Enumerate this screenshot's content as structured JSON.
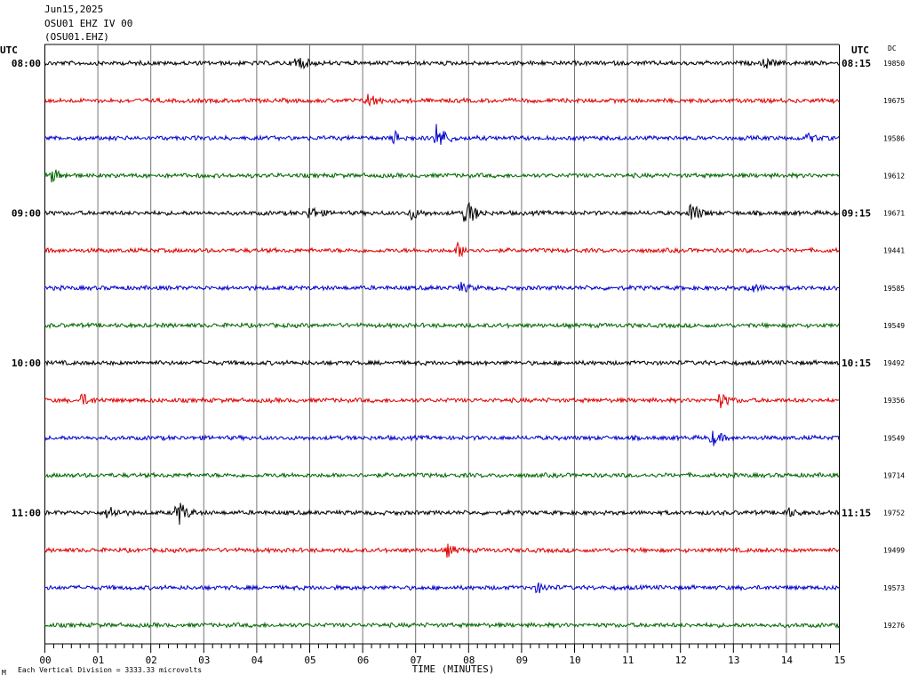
{
  "header": {
    "date": "Jun15,2025",
    "station": "OSU01 EHZ IV 00",
    "channel": "(OSU01.EHZ)"
  },
  "left_axis_label": "UTC",
  "right_axis_label": "UTC",
  "dc_label": "DC",
  "footer": {
    "scale_note": "Each Vertical Division = 3333.33 microvolts",
    "corner_mark": "M"
  },
  "colors": [
    "#000000",
    "#dd0000",
    "#0000cc",
    "#006600"
  ],
  "chart_data": {
    "type": "line",
    "xlabel": "TIME (MINUTES)",
    "xlim": [
      0,
      15
    ],
    "x_tick_labels": [
      "00",
      "01",
      "02",
      "03",
      "04",
      "05",
      "06",
      "07",
      "08",
      "09",
      "10",
      "11",
      "12",
      "13",
      "14",
      "15"
    ],
    "rows": [
      {
        "left": "08:00",
        "right": "08:15",
        "dc": "19850"
      },
      {
        "left": "",
        "right": "",
        "dc": "19675"
      },
      {
        "left": "",
        "right": "",
        "dc": "19586"
      },
      {
        "left": "",
        "right": "",
        "dc": "19612"
      },
      {
        "left": "09:00",
        "right": "09:15",
        "dc": "19671"
      },
      {
        "left": "",
        "right": "",
        "dc": "19441"
      },
      {
        "left": "",
        "right": "",
        "dc": "19585"
      },
      {
        "left": "",
        "right": "",
        "dc": "19549"
      },
      {
        "left": "10:00",
        "right": "10:15",
        "dc": "19492"
      },
      {
        "left": "",
        "right": "",
        "dc": "19356"
      },
      {
        "left": "",
        "right": "",
        "dc": "19549"
      },
      {
        "left": "",
        "right": "",
        "dc": "19714"
      },
      {
        "left": "11:00",
        "right": "11:15",
        "dc": "19752"
      },
      {
        "left": "",
        "right": "",
        "dc": "19499"
      },
      {
        "left": "",
        "right": "",
        "dc": "19573"
      },
      {
        "left": "",
        "right": "",
        "dc": "19276"
      }
    ],
    "events": [
      {
        "row": 0,
        "minute": 4.75,
        "amp": 1.8
      },
      {
        "row": 0,
        "minute": 13.6,
        "amp": 1.0
      },
      {
        "row": 1,
        "minute": 6.1,
        "amp": 1.6
      },
      {
        "row": 2,
        "minute": 6.6,
        "amp": 1.2
      },
      {
        "row": 2,
        "minute": 7.4,
        "amp": 3.0
      },
      {
        "row": 2,
        "minute": 14.4,
        "amp": 0.8
      },
      {
        "row": 3,
        "minute": 0.15,
        "amp": 1.4
      },
      {
        "row": 4,
        "minute": 5.0,
        "amp": 1.4
      },
      {
        "row": 4,
        "minute": 6.9,
        "amp": 1.3
      },
      {
        "row": 4,
        "minute": 7.95,
        "amp": 3.2
      },
      {
        "row": 4,
        "minute": 12.2,
        "amp": 2.2
      },
      {
        "row": 5,
        "minute": 7.8,
        "amp": 1.4
      },
      {
        "row": 6,
        "minute": 7.85,
        "amp": 0.9
      },
      {
        "row": 6,
        "minute": 13.3,
        "amp": 1.0
      },
      {
        "row": 9,
        "minute": 0.7,
        "amp": 1.2
      },
      {
        "row": 9,
        "minute": 12.75,
        "amp": 1.4
      },
      {
        "row": 10,
        "minute": 12.6,
        "amp": 1.5
      },
      {
        "row": 12,
        "minute": 1.2,
        "amp": 1.6
      },
      {
        "row": 12,
        "minute": 2.5,
        "amp": 3.0
      },
      {
        "row": 12,
        "minute": 14.0,
        "amp": 1.0
      },
      {
        "row": 13,
        "minute": 7.6,
        "amp": 1.1
      },
      {
        "row": 14,
        "minute": 9.3,
        "amp": 1.0
      }
    ]
  }
}
